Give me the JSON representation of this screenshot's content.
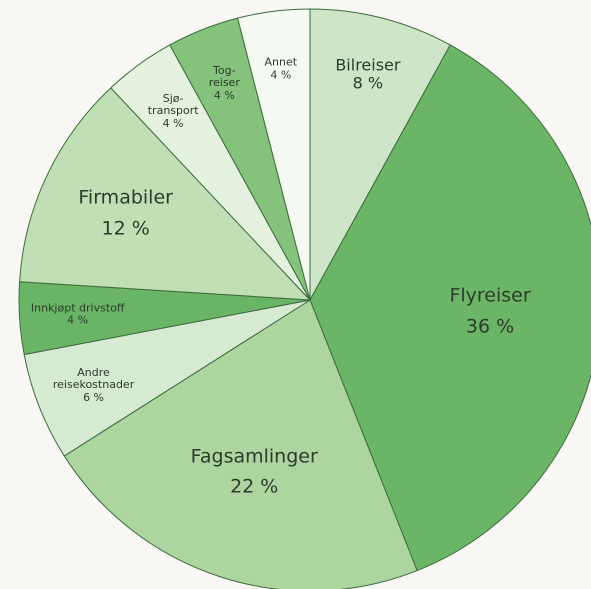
{
  "chart_data": {
    "type": "pie",
    "categories": [
      "Bilreiser",
      "Flyreiser",
      "Fagsamlinger",
      "Andre\nreisekostnader",
      "Innkjøpt drivstoff",
      "Firmabiler",
      "Sjø-\ntransport",
      "Tog-\nreiser",
      "Annet"
    ],
    "values": [
      8,
      36,
      22,
      6,
      4,
      12,
      4,
      4,
      4
    ],
    "value_labels": [
      "8 %",
      "36 %",
      "22 %",
      "6 %",
      "4 %",
      "12 %",
      "4 %",
      "4 %",
      "4 %"
    ],
    "colors": [
      "#cfe5c8",
      "#6bb567",
      "#acd5a0",
      "#d5ead0",
      "#69b565",
      "#c0dfb5",
      "#e3f1de",
      "#85c27c",
      "#f4faf2"
    ]
  }
}
